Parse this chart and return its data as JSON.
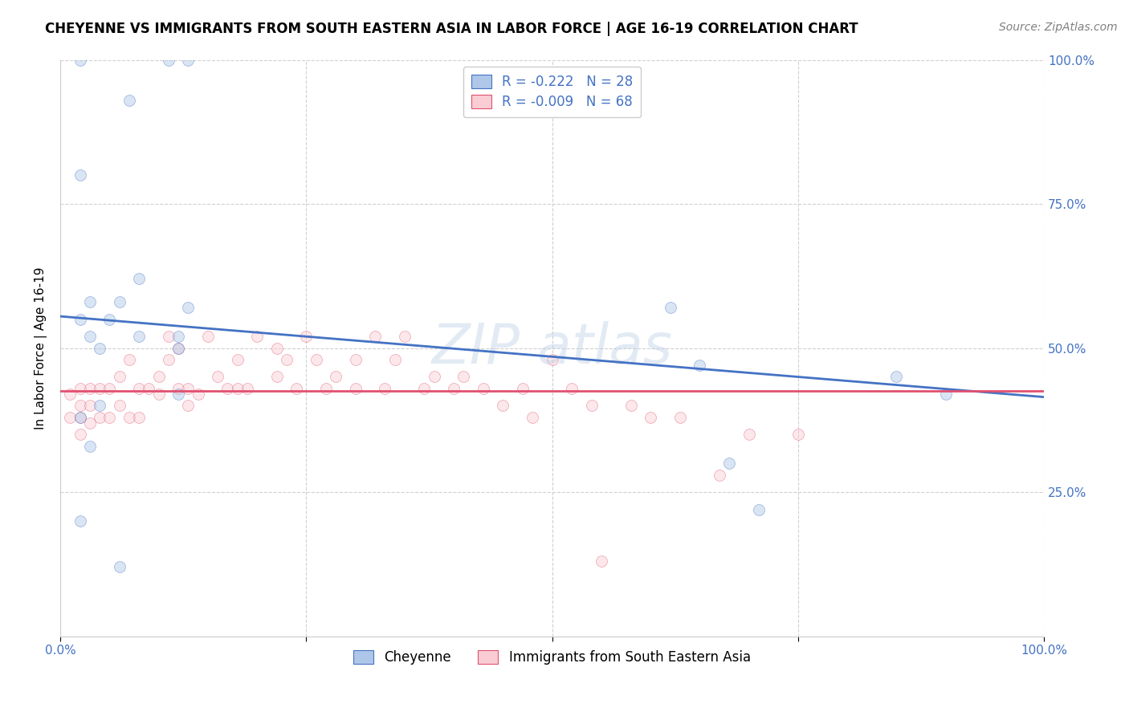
{
  "title": "CHEYENNE VS IMMIGRANTS FROM SOUTH EASTERN ASIA IN LABOR FORCE | AGE 16-19 CORRELATION CHART",
  "source": "Source: ZipAtlas.com",
  "ylabel": "In Labor Force | Age 16-19",
  "xlim": [
    0.0,
    1.0
  ],
  "ylim": [
    0.0,
    1.0
  ],
  "xticks": [
    0.0,
    0.25,
    0.5,
    0.75,
    1.0
  ],
  "yticks": [
    0.0,
    0.25,
    0.5,
    0.75,
    1.0
  ],
  "xticklabels": [
    "0.0%",
    "",
    "",
    "",
    "100.0%"
  ],
  "yticklabels_right": [
    "",
    "25.0%",
    "50.0%",
    "75.0%",
    "100.0%"
  ],
  "legend_entries": [
    {
      "label": "Cheyenne",
      "color": "#aec6e8"
    },
    {
      "label": "Immigrants from South Eastern Asia",
      "color": "#f4b8c1"
    }
  ],
  "R_blue": -0.222,
  "N_blue": 28,
  "R_pink": -0.009,
  "N_pink": 68,
  "blue_color": "#aec6e8",
  "pink_color": "#f9cdd3",
  "blue_line_color": "#4472c4",
  "pink_line_color": "#e05070",
  "annotation_color": "#4472c4",
  "grid_color": "#d0d0d0",
  "blue_scatter_x": [
    0.02,
    0.07,
    0.11,
    0.13,
    0.02,
    0.02,
    0.03,
    0.03,
    0.04,
    0.05,
    0.06,
    0.08,
    0.08,
    0.12,
    0.02,
    0.02,
    0.03,
    0.04,
    0.06,
    0.12,
    0.12,
    0.13,
    0.62,
    0.65,
    0.68,
    0.71,
    0.85,
    0.9
  ],
  "blue_scatter_y": [
    1.0,
    0.93,
    1.0,
    1.0,
    0.8,
    0.55,
    0.58,
    0.52,
    0.5,
    0.55,
    0.58,
    0.62,
    0.52,
    0.52,
    0.38,
    0.2,
    0.33,
    0.4,
    0.12,
    0.5,
    0.42,
    0.57,
    0.57,
    0.47,
    0.3,
    0.22,
    0.45,
    0.42
  ],
  "pink_scatter_x": [
    0.01,
    0.01,
    0.02,
    0.02,
    0.02,
    0.02,
    0.03,
    0.03,
    0.03,
    0.04,
    0.04,
    0.05,
    0.05,
    0.06,
    0.06,
    0.07,
    0.07,
    0.08,
    0.08,
    0.09,
    0.1,
    0.1,
    0.11,
    0.11,
    0.12,
    0.12,
    0.13,
    0.13,
    0.14,
    0.15,
    0.16,
    0.17,
    0.18,
    0.18,
    0.19,
    0.2,
    0.22,
    0.22,
    0.23,
    0.24,
    0.25,
    0.26,
    0.27,
    0.28,
    0.3,
    0.3,
    0.32,
    0.33,
    0.34,
    0.35,
    0.37,
    0.38,
    0.4,
    0.41,
    0.43,
    0.45,
    0.47,
    0.48,
    0.5,
    0.52,
    0.54,
    0.55,
    0.58,
    0.6,
    0.63,
    0.67,
    0.7,
    0.75
  ],
  "pink_scatter_y": [
    0.42,
    0.38,
    0.43,
    0.4,
    0.38,
    0.35,
    0.43,
    0.4,
    0.37,
    0.43,
    0.38,
    0.43,
    0.38,
    0.45,
    0.4,
    0.48,
    0.38,
    0.43,
    0.38,
    0.43,
    0.45,
    0.42,
    0.48,
    0.52,
    0.5,
    0.43,
    0.43,
    0.4,
    0.42,
    0.52,
    0.45,
    0.43,
    0.48,
    0.43,
    0.43,
    0.52,
    0.5,
    0.45,
    0.48,
    0.43,
    0.52,
    0.48,
    0.43,
    0.45,
    0.48,
    0.43,
    0.52,
    0.43,
    0.48,
    0.52,
    0.43,
    0.45,
    0.43,
    0.45,
    0.43,
    0.4,
    0.43,
    0.38,
    0.48,
    0.43,
    0.4,
    0.13,
    0.4,
    0.38,
    0.38,
    0.28,
    0.35,
    0.35
  ],
  "blue_line_y_start": 0.555,
  "blue_line_y_end": 0.415,
  "pink_line_y_start": 0.425,
  "pink_line_y_end": 0.425,
  "title_fontsize": 12,
  "label_fontsize": 11,
  "tick_fontsize": 11,
  "legend_fontsize": 12,
  "source_fontsize": 10,
  "marker_size": 100,
  "marker_alpha": 0.45,
  "background_color": "#ffffff"
}
